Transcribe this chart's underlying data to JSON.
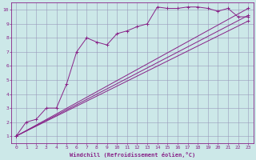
{
  "bg_color": "#cce8e8",
  "grid_color": "#9999bb",
  "line_color": "#882288",
  "xlabel": "Windchill (Refroidissement éolien,°C)",
  "xlim": [
    -0.5,
    23.5
  ],
  "ylim": [
    0.5,
    10.5
  ],
  "xticks": [
    0,
    1,
    2,
    3,
    4,
    5,
    6,
    7,
    8,
    9,
    10,
    11,
    12,
    13,
    14,
    15,
    16,
    17,
    18,
    19,
    20,
    21,
    22,
    23
  ],
  "yticks": [
    1,
    2,
    3,
    4,
    5,
    6,
    7,
    8,
    9,
    10
  ],
  "zigzag": {
    "x": [
      0,
      1,
      2,
      3,
      4,
      5,
      6,
      7,
      8,
      9,
      10,
      11,
      12,
      13,
      14,
      15,
      16,
      17,
      18,
      19,
      20,
      21,
      22,
      23
    ],
    "y": [
      1.0,
      2.0,
      2.2,
      3.0,
      3.0,
      4.7,
      7.0,
      8.0,
      7.7,
      7.5,
      8.3,
      8.5,
      8.8,
      9.0,
      10.2,
      10.1,
      10.1,
      10.2,
      10.2,
      10.1,
      9.9,
      10.1,
      9.5,
      9.5
    ],
    "markersize": 2.5
  },
  "straight_lines": [
    {
      "x": [
        0,
        23
      ],
      "y": [
        1.0,
        10.1
      ]
    },
    {
      "x": [
        0,
        23
      ],
      "y": [
        1.0,
        9.6
      ]
    },
    {
      "x": [
        0,
        23
      ],
      "y": [
        1.0,
        9.2
      ]
    }
  ]
}
